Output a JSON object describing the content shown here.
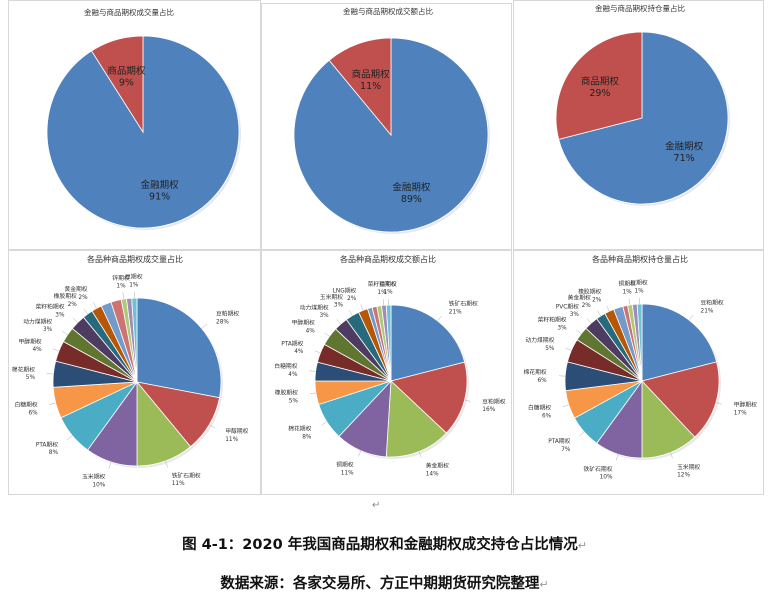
{
  "caption": {
    "figure_title": "图 4-1：2020 年我国商品期权和金融期权成交持仓占比情况",
    "source": "数据来源：各家交易所、方正中期期货研究院整理",
    "return_mark": "↵"
  },
  "chart_data": [
    {
      "type": "pie",
      "title": "金融与商品期权成交量占比",
      "slices": [
        {
          "label": "金融期权",
          "value": 91,
          "display": "91%",
          "color": "#4F81BD"
        },
        {
          "label": "商品期权",
          "value": 9,
          "display": "9%",
          "color": "#C0504D"
        }
      ]
    },
    {
      "type": "pie",
      "title": "金融与商品期权成交额占比",
      "slices": [
        {
          "label": "金融期权",
          "value": 89,
          "display": "89%",
          "color": "#4F81BD"
        },
        {
          "label": "商品期权",
          "value": 11,
          "display": "11%",
          "color": "#C0504D"
        }
      ]
    },
    {
      "type": "pie",
      "title": "金融与商品期权持仓量占比",
      "slices": [
        {
          "label": "金融期权",
          "value": 71,
          "display": "71%",
          "color": "#4F81BD"
        },
        {
          "label": "商品期权",
          "value": 29,
          "display": "29%",
          "color": "#C0504D"
        }
      ]
    },
    {
      "type": "pie",
      "title": "各品种商品期权成交量占比",
      "slices": [
        {
          "label": "豆粕期权",
          "value": 28,
          "display": "28%",
          "color": "#4F81BD"
        },
        {
          "label": "甲醇期权",
          "value": 11,
          "display": "11%",
          "color": "#C0504D"
        },
        {
          "label": "铁矿石期权",
          "value": 11,
          "display": "11%",
          "color": "#9BBB59"
        },
        {
          "label": "玉米期权",
          "value": 10,
          "display": "10%",
          "color": "#8064A2"
        },
        {
          "label": "PTA期权",
          "value": 8,
          "display": "8%",
          "color": "#4BACC6"
        },
        {
          "label": "白糖期权",
          "value": 6,
          "display": "6%",
          "color": "#F79646"
        },
        {
          "label": "棉花期权",
          "value": 5,
          "display": "5%",
          "color": "#2C4D75"
        },
        {
          "label": "甲醇期权",
          "value": 4,
          "display": "4%",
          "color": "#772C2A"
        },
        {
          "label": "动力煤期权",
          "value": 3,
          "display": "3%",
          "color": "#5F7530"
        },
        {
          "label": "菜籽粕期权",
          "value": 3,
          "display": "3%",
          "color": "#4D3B62"
        },
        {
          "label": "橡胶期权",
          "value": 2,
          "display": "2%",
          "color": "#276A7C"
        },
        {
          "label": "黄金期权",
          "value": 2,
          "display": "2%",
          "color": "#B65708"
        },
        {
          "label": "",
          "value": 2,
          "display": "",
          "color": "#729ACA"
        },
        {
          "label": "",
          "value": 2,
          "display": "",
          "color": "#CD7371"
        },
        {
          "label": "锌期权",
          "value": 1,
          "display": "1%",
          "color": "#AFC97A"
        },
        {
          "label": "",
          "value": 1,
          "display": "",
          "color": "#A08CBA"
        },
        {
          "label": "豆期权",
          "value": 1,
          "display": "1%",
          "color": "#6FC0D4"
        }
      ]
    },
    {
      "type": "pie",
      "title": "各品种商品期权成交额占比",
      "slices": [
        {
          "label": "铁矿石期权",
          "value": 21,
          "display": "21%",
          "color": "#4F81BD"
        },
        {
          "label": "豆粕期权",
          "value": 16,
          "display": "16%",
          "color": "#C0504D"
        },
        {
          "label": "黄金期权",
          "value": 14,
          "display": "14%",
          "color": "#9BBB59"
        },
        {
          "label": "铜期权",
          "value": 11,
          "display": "11%",
          "color": "#8064A2"
        },
        {
          "label": "棉花期权",
          "value": 8,
          "display": "8%",
          "color": "#4BACC6"
        },
        {
          "label": "橡胶期权",
          "value": 5,
          "display": "5%",
          "color": "#F79646"
        },
        {
          "label": "白糖期权",
          "value": 4,
          "display": "4%",
          "color": "#2C4D75"
        },
        {
          "label": "PTA期权",
          "value": 4,
          "display": "4%",
          "color": "#772C2A"
        },
        {
          "label": "甲醇期权",
          "value": 4,
          "display": "4%",
          "color": "#5F7530"
        },
        {
          "label": "动力煤期权",
          "value": 3,
          "display": "3%",
          "color": "#4D3B62"
        },
        {
          "label": "玉米期权",
          "value": 3,
          "display": "3%",
          "color": "#276A7C"
        },
        {
          "label": "LNG期权",
          "value": 2,
          "display": "2%",
          "color": "#B65708"
        },
        {
          "label": "",
          "value": 1,
          "display": "",
          "color": "#729ACA"
        },
        {
          "label": "",
          "value": 1,
          "display": "",
          "color": "#CD7371"
        },
        {
          "label": "",
          "value": 1,
          "display": "",
          "color": "#AFC97A"
        },
        {
          "label": "菜籽粕期权",
          "value": 1,
          "display": "1%",
          "color": "#A08CBA"
        },
        {
          "label": "豆期权",
          "value": 1,
          "display": "1%",
          "color": "#6FC0D4"
        }
      ]
    },
    {
      "type": "pie",
      "title": "各品种商品期权持仓量占比",
      "slices": [
        {
          "label": "豆粕期权",
          "value": 21,
          "display": "21%",
          "color": "#4F81BD"
        },
        {
          "label": "甲醇期权",
          "value": 17,
          "display": "17%",
          "color": "#C0504D"
        },
        {
          "label": "玉米期权",
          "value": 12,
          "display": "12%",
          "color": "#9BBB59"
        },
        {
          "label": "铁矿石期权",
          "value": 10,
          "display": "10%",
          "color": "#8064A2"
        },
        {
          "label": "PTA期权",
          "value": 7,
          "display": "7%",
          "color": "#4BACC6"
        },
        {
          "label": "白糖期权",
          "value": 6,
          "display": "6%",
          "color": "#F79646"
        },
        {
          "label": "棉花期权",
          "value": 6,
          "display": "6%",
          "color": "#2C4D75"
        },
        {
          "label": "动力煤期权",
          "value": 5,
          "display": "5%",
          "color": "#772C2A"
        },
        {
          "label": "菜籽粕期权",
          "value": 3,
          "display": "3%",
          "color": "#5F7530"
        },
        {
          "label": "PVC期权",
          "value": 3,
          "display": "3%",
          "color": "#4D3B62"
        },
        {
          "label": "黄金期权",
          "value": 2,
          "display": "2%",
          "color": "#276A7C"
        },
        {
          "label": "橡胶期权",
          "value": 2,
          "display": "2%",
          "color": "#B65708"
        },
        {
          "label": "",
          "value": 2,
          "display": "",
          "color": "#729ACA"
        },
        {
          "label": "",
          "value": 1,
          "display": "",
          "color": "#CD7371"
        },
        {
          "label": "铜期权",
          "value": 1,
          "display": "1%",
          "color": "#AFC97A"
        },
        {
          "label": "",
          "value": 1,
          "display": "",
          "color": "#A08CBA"
        },
        {
          "label": "豆期权",
          "value": 1,
          "display": "1%",
          "color": "#6FC0D4"
        }
      ]
    }
  ]
}
